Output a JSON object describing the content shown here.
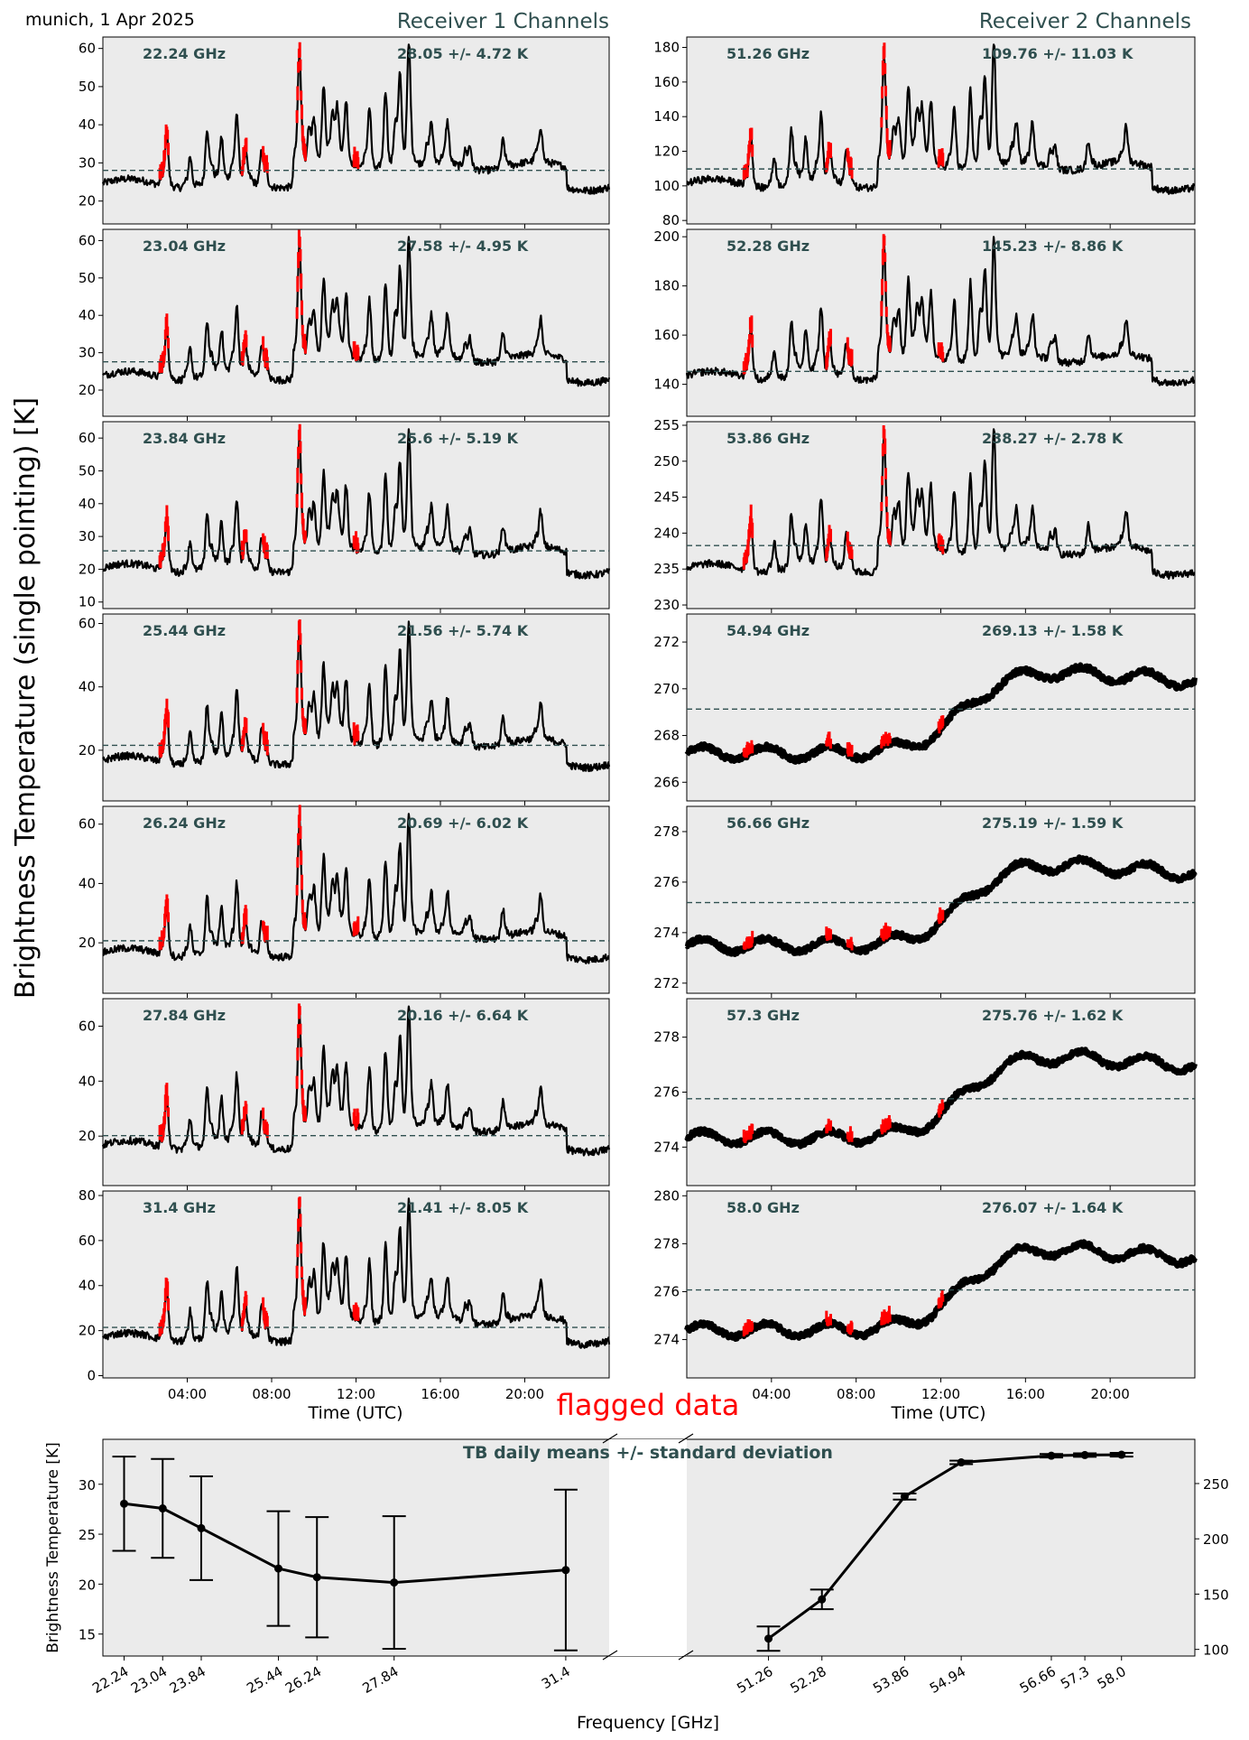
{
  "header": {
    "location_date": "munich, 1 Apr 2025",
    "receiver1_title": "Receiver 1 Channels",
    "receiver2_title": "Receiver 2 Channels",
    "ylabel": "Brightness Temperature (single pointing) [K]",
    "time_xlabel": "Time (UTC)",
    "flagged_label": "flagged data"
  },
  "colors": {
    "panel_bg": "#ebebeb",
    "data": "#000000",
    "flagged": "#ff0000",
    "mean_line": "#2f4f4f",
    "channel_text": "#2f4f4f"
  },
  "time_ticks": [
    "04:00",
    "08:00",
    "12:00",
    "16:00",
    "20:00"
  ],
  "chart_data": [
    {
      "type": "line",
      "receiver": 1,
      "channels": [
        {
          "freq_label": "22.24 GHz",
          "stat_label": "28.05 +/- 4.72 K",
          "mean": 28.05,
          "std": 4.72,
          "ylim": [
            14,
            63
          ],
          "yticks": [
            20,
            30,
            40,
            50,
            60
          ]
        },
        {
          "freq_label": "23.04 GHz",
          "stat_label": "27.58 +/- 4.95 K",
          "mean": 27.58,
          "std": 4.95,
          "ylim": [
            13,
            63
          ],
          "yticks": [
            20,
            30,
            40,
            50,
            60
          ]
        },
        {
          "freq_label": "23.84 GHz",
          "stat_label": "25.6 +/- 5.19 K",
          "mean": 25.6,
          "std": 5.19,
          "ylim": [
            8,
            65
          ],
          "yticks": [
            10,
            20,
            30,
            40,
            50,
            60
          ]
        },
        {
          "freq_label": "25.44 GHz",
          "stat_label": "21.56 +/- 5.74 K",
          "mean": 21.56,
          "std": 5.74,
          "ylim": [
            4,
            63
          ],
          "yticks": [
            20,
            40,
            60
          ]
        },
        {
          "freq_label": "26.24 GHz",
          "stat_label": "20.69 +/- 6.02 K",
          "mean": 20.69,
          "std": 6.02,
          "ylim": [
            3,
            66
          ],
          "yticks": [
            20,
            40,
            60
          ]
        },
        {
          "freq_label": "27.84 GHz",
          "stat_label": "20.16 +/- 6.64 K",
          "mean": 20.16,
          "std": 6.64,
          "ylim": [
            2,
            70
          ],
          "yticks": [
            20,
            40,
            60
          ]
        },
        {
          "freq_label": "31.4 GHz",
          "stat_label": "21.41 +/- 8.05 K",
          "mean": 21.41,
          "std": 8.05,
          "ylim": [
            -1,
            82
          ],
          "yticks": [
            0,
            20,
            40,
            60,
            80
          ]
        }
      ]
    },
    {
      "type": "line",
      "receiver": 2,
      "channels": [
        {
          "freq_label": "51.26 GHz",
          "stat_label": "109.76 +/- 11.03 K",
          "mean": 109.76,
          "std": 11.03,
          "ylim": [
            78,
            186
          ],
          "yticks": [
            80,
            100,
            120,
            140,
            160,
            180
          ]
        },
        {
          "freq_label": "52.28 GHz",
          "stat_label": "145.23 +/- 8.86 K",
          "mean": 145.23,
          "std": 8.86,
          "ylim": [
            127,
            203
          ],
          "yticks": [
            140,
            160,
            180,
            200
          ]
        },
        {
          "freq_label": "53.86 GHz",
          "stat_label": "238.27 +/- 2.78 K",
          "mean": 238.27,
          "std": 2.78,
          "ylim": [
            229.5,
            255.5
          ],
          "yticks": [
            230,
            235,
            240,
            245,
            250,
            255
          ]
        },
        {
          "freq_label": "54.94 GHz",
          "stat_label": "269.13 +/- 1.58 K",
          "mean": 269.13,
          "std": 1.58,
          "ylim": [
            265.2,
            273.2
          ],
          "yticks": [
            266,
            268,
            270,
            272
          ]
        },
        {
          "freq_label": "56.66 GHz",
          "stat_label": "275.19 +/- 1.59 K",
          "mean": 275.19,
          "std": 1.59,
          "ylim": [
            271.6,
            279
          ],
          "yticks": [
            272,
            274,
            276,
            278
          ]
        },
        {
          "freq_label": "57.3 GHz",
          "stat_label": "275.76 +/- 1.62 K",
          "mean": 275.76,
          "std": 1.62,
          "ylim": [
            272.6,
            279.4
          ],
          "yticks": [
            274,
            276,
            278
          ]
        },
        {
          "freq_label": "58.0 GHz",
          "stat_label": "276.07 +/- 1.64 K",
          "mean": 276.07,
          "std": 1.64,
          "ylim": [
            272.4,
            280.2
          ],
          "yticks": [
            274,
            276,
            278,
            280
          ]
        }
      ]
    },
    {
      "type": "line",
      "title": "TB daily means +/- standard deviation",
      "xlabel": "Frequency [GHz]",
      "ylabel": "Brightness Temperature [K]",
      "series": [
        {
          "receiver": 1,
          "x": [
            22.24,
            23.04,
            23.84,
            25.44,
            26.24,
            27.84,
            31.4
          ],
          "x_labels": [
            "22.24",
            "23.04",
            "23.84",
            "25.44",
            "26.24",
            "27.84",
            "31.4"
          ],
          "values": [
            28.05,
            27.58,
            25.6,
            21.56,
            20.69,
            20.16,
            21.41
          ],
          "std": [
            4.72,
            4.95,
            5.19,
            5.74,
            6.02,
            6.64,
            8.05
          ],
          "ylim": [
            12.8,
            34.5
          ],
          "yticks": [
            15,
            20,
            25,
            30
          ]
        },
        {
          "receiver": 2,
          "x": [
            51.26,
            52.28,
            53.86,
            54.94,
            56.66,
            57.3,
            58.0
          ],
          "x_labels": [
            "51.26",
            "52.28",
            "53.86",
            "54.94",
            "56.66",
            "57.3",
            "58.0"
          ],
          "values": [
            109.76,
            145.23,
            238.27,
            269.13,
            275.19,
            275.76,
            276.07
          ],
          "std": [
            11.03,
            8.86,
            2.78,
            1.58,
            1.59,
            1.62,
            1.64
          ],
          "ylim": [
            94,
            290
          ],
          "yticks": [
            100,
            150,
            200,
            250
          ]
        }
      ]
    }
  ]
}
